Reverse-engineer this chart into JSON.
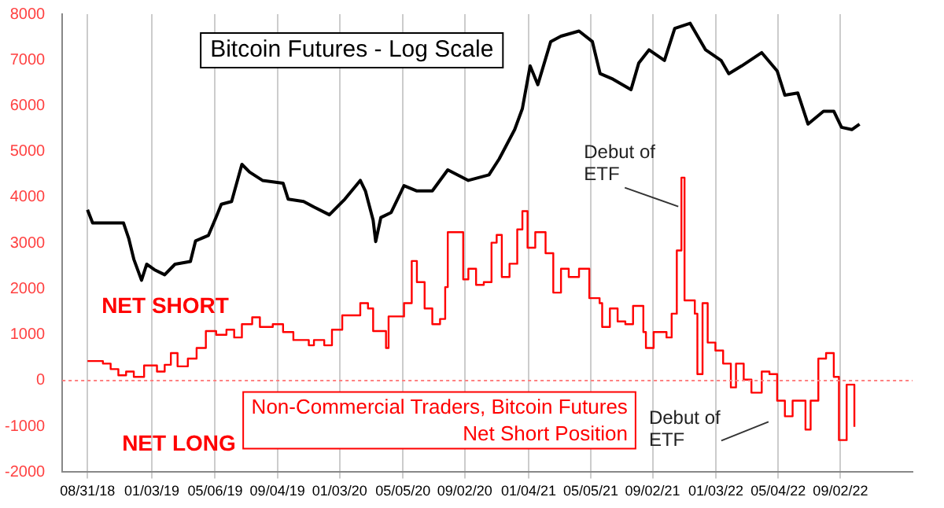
{
  "chart_data": {
    "type": "line",
    "title": "Bitcoin Futures - Log Scale",
    "xlim": [
      "2018-07-13",
      "2023-01-20"
    ],
    "xticks": [
      {
        "value": "2018-08-31",
        "label": "08/31/18"
      },
      {
        "value": "2019-01-03",
        "label": "01/03/19"
      },
      {
        "value": "2019-05-06",
        "label": "05/06/19"
      },
      {
        "value": "2019-09-04",
        "label": "09/04/19"
      },
      {
        "value": "2020-01-03",
        "label": "01/03/20"
      },
      {
        "value": "2020-05-05",
        "label": "05/05/20"
      },
      {
        "value": "2020-09-02",
        "label": "09/02/20"
      },
      {
        "value": "2021-01-04",
        "label": "01/04/21"
      },
      {
        "value": "2021-05-05",
        "label": "05/05/21"
      },
      {
        "value": "2021-09-02",
        "label": "09/02/21"
      },
      {
        "value": "2022-01-03",
        "label": "01/03/22"
      },
      {
        "value": "2022-05-04",
        "label": "05/04/22"
      },
      {
        "value": "2022-09-02",
        "label": "09/02/22"
      }
    ],
    "ylim": [
      -2000,
      8000
    ],
    "yticks": [
      -2000,
      -1000,
      0,
      1000,
      2000,
      3000,
      4000,
      5000,
      6000,
      7000,
      8000
    ],
    "grid": "x",
    "legend": false,
    "marker": "none",
    "ref_lines": [
      {
        "axis": "y",
        "value": 0,
        "color": "#ff8080",
        "line_style": "dotted"
      }
    ],
    "annotations": [
      "NET SHORT",
      "NET LONG",
      "Debut of ETF",
      {
        "text": "Debut of ETF",
        "x": "2021-10-28",
        "y": 3800
      }
    ],
    "series": [
      {
        "color": "#000000",
        "x": [
          "2018-08-31",
          "2018-09-10",
          "2018-10-10",
          "2018-11-09",
          "2018-11-19",
          "2018-11-29",
          "2018-12-14",
          "2018-12-24",
          "2019-01-08",
          "2019-01-28",
          "2019-02-17",
          "2019-03-19",
          "2019-03-29",
          "2019-04-23",
          "2019-05-08",
          "2019-05-18",
          "2019-06-07",
          "2019-06-27",
          "2019-07-12",
          "2019-08-06",
          "2019-09-15",
          "2019-09-25",
          "2019-10-25",
          "2019-11-14",
          "2019-12-14",
          "2020-01-13",
          "2020-02-12",
          "2020-02-22",
          "2020-03-08",
          "2020-03-13",
          "2020-03-23",
          "2020-04-12",
          "2020-05-07",
          "2020-06-01",
          "2020-07-01",
          "2020-07-31",
          "2020-09-09",
          "2020-10-19",
          "2020-11-08",
          "2020-12-08",
          "2020-12-23",
          "2021-01-07",
          "2021-01-22",
          "2021-02-16",
          "2021-03-08",
          "2021-04-12",
          "2021-05-08",
          "2021-05-23",
          "2021-06-17",
          "2021-07-22",
          "2021-08-06",
          "2021-08-26",
          "2021-09-25",
          "2021-10-15",
          "2021-11-14",
          "2021-12-14",
          "2022-01-13",
          "2022-01-28",
          "2022-02-22",
          "2022-04-02",
          "2022-05-02",
          "2022-05-17",
          "2022-06-11",
          "2022-07-01",
          "2022-07-31",
          "2022-08-20",
          "2022-09-04",
          "2022-09-24",
          "2022-10-09"
        ],
        "values": [
          3730,
          3440,
          3440,
          3440,
          3110,
          2650,
          2190,
          2540,
          2420,
          2310,
          2540,
          2600,
          3050,
          3170,
          3570,
          3850,
          3910,
          4720,
          4550,
          4370,
          4310,
          3960,
          3910,
          3790,
          3620,
          3960,
          4370,
          4140,
          3500,
          3035,
          3560,
          3670,
          4255,
          4140,
          4140,
          4600,
          4370,
          4490,
          4840,
          5480,
          5940,
          6870,
          6460,
          7400,
          7520,
          7630,
          7400,
          6700,
          6580,
          6350,
          6930,
          7220,
          6990,
          7690,
          7800,
          7220,
          6990,
          6700,
          6870,
          7160,
          6760,
          6230,
          6280,
          5600,
          5880,
          5880,
          5530,
          5480,
          5600
        ]
      },
      {
        "type": "step",
        "name": "Non-Commercial Traders, Bitcoin Futures Net Short Position",
        "color": "#ff0000",
        "x": [
          "2018-08-31",
          "2018-09-30",
          "2018-10-15",
          "2018-10-30",
          "2018-11-14",
          "2018-11-29",
          "2018-12-19",
          "2019-01-13",
          "2019-01-28",
          "2019-02-09",
          "2019-02-22",
          "2019-03-14",
          "2019-03-31",
          "2019-04-18",
          "2019-05-08",
          "2019-05-28",
          "2019-06-12",
          "2019-06-27",
          "2019-07-17",
          "2019-08-01",
          "2019-08-26",
          "2019-09-15",
          "2019-10-05",
          "2019-11-04",
          "2019-11-14",
          "2019-12-04",
          "2019-12-19",
          "2020-01-08",
          "2020-02-12",
          "2020-02-27",
          "2020-03-08",
          "2020-04-02",
          "2020-04-07",
          "2020-05-07",
          "2020-05-22",
          "2020-06-01",
          "2020-06-16",
          "2020-07-01",
          "2020-07-16",
          "2020-07-26",
          "2020-07-31",
          "2020-08-20",
          "2020-08-30",
          "2020-09-09",
          "2020-09-24",
          "2020-10-09",
          "2020-10-24",
          "2020-11-03",
          "2020-11-13",
          "2020-11-28",
          "2020-12-13",
          "2020-12-23",
          "2021-01-02",
          "2021-01-17",
          "2021-02-06",
          "2021-02-21",
          "2021-03-08",
          "2021-03-23",
          "2021-04-12",
          "2021-05-02",
          "2021-05-22",
          "2021-05-27",
          "2021-06-11",
          "2021-06-26",
          "2021-07-11",
          "2021-07-26",
          "2021-08-15",
          "2021-08-20",
          "2021-09-04",
          "2021-09-29",
          "2021-10-09",
          "2021-10-19",
          "2021-10-28",
          "2021-11-03",
          "2021-11-23",
          "2021-11-28",
          "2021-12-08",
          "2021-12-18",
          "2022-01-02",
          "2022-01-17",
          "2022-02-01",
          "2022-02-11",
          "2022-02-26",
          "2022-03-13",
          "2022-04-02",
          "2022-04-17",
          "2022-05-02",
          "2022-05-17",
          "2022-06-01",
          "2022-06-26",
          "2022-07-06",
          "2022-07-21",
          "2022-08-05",
          "2022-08-20",
          "2022-08-30",
          "2022-09-14",
          "2022-09-29"
        ],
        "values": [
          425,
          370,
          250,
          115,
          195,
          80,
          330,
          195,
          345,
          600,
          310,
          480,
          710,
          1080,
          1000,
          1110,
          940,
          1230,
          1380,
          1170,
          1230,
          1060,
          885,
          770,
          885,
          770,
          1110,
          1425,
          1690,
          1575,
          1080,
          710,
          1400,
          1690,
          2610,
          2150,
          1575,
          1230,
          1345,
          2040,
          3240,
          3240,
          2210,
          2440,
          2090,
          2150,
          3010,
          3180,
          2260,
          2550,
          3300,
          3700,
          2900,
          3240,
          2780,
          1920,
          2440,
          2260,
          2440,
          1800,
          1690,
          1170,
          1575,
          1290,
          1230,
          1630,
          1060,
          710,
          1060,
          940,
          1460,
          2840,
          4430,
          1750,
          1460,
          140,
          1690,
          830,
          655,
          370,
          -150,
          370,
          20,
          -265,
          195,
          140,
          -440,
          -780,
          -440,
          -1070,
          -440,
          480,
          600,
          80,
          -1300,
          -90,
          -1010
        ]
      }
    ]
  }
}
